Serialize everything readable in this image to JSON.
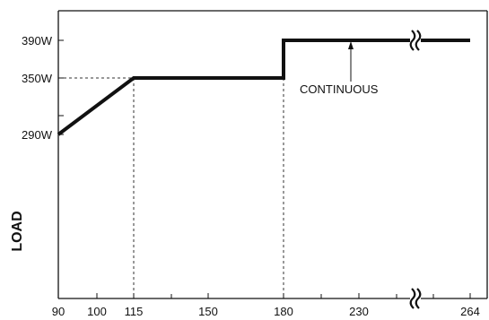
{
  "chart_data": {
    "type": "line",
    "title": "",
    "xlabel": "",
    "ylabel": "LOAD",
    "x_ticks": [
      "90",
      "100",
      "115",
      "150",
      "180",
      "230",
      "264"
    ],
    "y_ticks": [
      "390W",
      "350W",
      "290W"
    ],
    "series": [
      {
        "x": [
          90,
          115,
          180,
          180,
          264
        ],
        "y": [
          290,
          350,
          350,
          390,
          390
        ]
      }
    ],
    "annotations": [
      {
        "text": "CONTINUOUS",
        "x": 220,
        "y": 390
      }
    ],
    "axis_break_x": true,
    "reference_lines": [
      {
        "from": [
          90,
          350
        ],
        "to": [
          115,
          350
        ]
      },
      {
        "from": [
          115,
          350
        ],
        "to": [
          115,
          0
        ]
      },
      {
        "from": [
          180,
          390
        ],
        "to": [
          180,
          0
        ]
      }
    ],
    "grid": false,
    "color": "#111111"
  }
}
